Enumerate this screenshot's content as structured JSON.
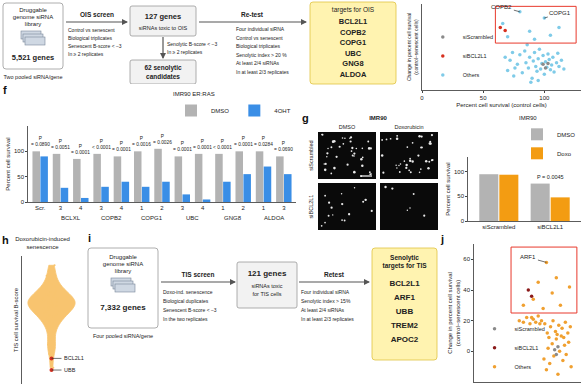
{
  "ois_workflow": {
    "library": {
      "title": "Druggable genome siRNA library",
      "genes": "5,521 genes",
      "note": "Two pooled siRNA/gene"
    },
    "screen": {
      "title": "OIS screen",
      "criteria": [
        "Control vs senescent",
        "Biological triplicates",
        "Senescent B-score < −3",
        "In ≥ 2 replicates"
      ]
    },
    "hits": {
      "genes": "127 genes",
      "note": "siRNAs toxic to OIS"
    },
    "filter": [
      "Senolytic B-score < −3",
      "In ≥ 2 replicates"
    ],
    "candidates": "62 senolytic candidates",
    "retest": {
      "title": "Re-test",
      "criteria": [
        "Four individual siRNA",
        "Control vs senescent",
        "Biological triplicates",
        "Senolytic index > 20 %",
        "At least 2/4 siRNAs",
        "In at least 2/3 replicates"
      ]
    },
    "targets": {
      "title": "targets for OIS",
      "genes": [
        "BCL2L1",
        "COPB2",
        "COPG1",
        "UBC",
        "GNG8",
        "ALDOA"
      ]
    }
  },
  "tis_workflow": {
    "panel": "i",
    "library": {
      "title": "Druggable genome siRNA library",
      "genes": "7,332 genes",
      "note": "Four pooled siRNA/gene"
    },
    "screen": {
      "title": "TIS screen",
      "criteria": [
        "Doxo-ind. senescence",
        "Biological duplicates",
        "Senescent B-score < −3",
        "In the two replicates"
      ]
    },
    "hits": {
      "genes": "121 genes",
      "note": "siRNAs toxic for TIS cells"
    },
    "retest": {
      "title": "Retest",
      "criteria": [
        "Four individual siRNA",
        "Senolytic index > 15%",
        "At least 2/4 siRNAs",
        "In at least 2/3 replicates"
      ]
    },
    "targets": {
      "title": "Senolytic targets for TIS",
      "genes": [
        "BCL2L1",
        "ARF1",
        "UBB",
        "TREM2",
        "APOC2"
      ]
    }
  },
  "micrographs": {
    "title": "IMR90",
    "columns": [
      "DMSO",
      "Doxorubicin"
    ],
    "rows": [
      "siScrambled",
      "siBCL2L1"
    ]
  },
  "chart_data": [
    {
      "type": "scatter",
      "x_label": "Percent cell survival (control cells)",
      "y_label": "Change in percent cell survival (control−senescent cells)",
      "xlim": [
        0,
        130
      ],
      "xticks": [
        0,
        50,
        100
      ],
      "ylim": [
        -30,
        80
      ],
      "tick_labels": "x",
      "grid": false,
      "legend": "lower left",
      "series": [
        {
          "name": "siScrambled",
          "color": "#8a8a8a",
          "x": [
            99,
            101,
            103
          ],
          "values": [
            3,
            -2,
            4
          ]
        },
        {
          "name": "siBCL2L1",
          "color": "#d7301f",
          "x": [
            64,
            68
          ],
          "values": [
            50,
            46
          ]
        },
        {
          "name": "Others",
          "color": "#7fcbe8",
          "x": [
            70,
            72,
            75,
            78,
            80,
            82,
            84,
            85,
            87,
            88,
            90,
            91,
            92,
            93,
            94,
            95,
            96,
            97,
            98,
            99,
            100,
            101,
            102,
            103,
            104,
            105,
            106,
            107,
            108,
            110,
            112,
            114,
            116,
            68,
            74,
            86,
            89,
            111,
            95,
            76,
            70,
            88,
            105,
            112,
            66,
            92,
            80,
            100
          ],
          "values": [
            -5,
            8,
            -12,
            3,
            15,
            -8,
            20,
            5,
            -2,
            12,
            -15,
            7,
            18,
            0,
            -6,
            10,
            22,
            -3,
            4,
            14,
            -10,
            6,
            -1,
            16,
            9,
            -4,
            2,
            12,
            -7,
            5,
            0,
            8,
            -3,
            12,
            18,
            28,
            -20,
            17,
            -18,
            -2,
            38,
            45,
            40,
            50,
            55,
            35,
            70,
            62
          ]
        }
      ],
      "highlight": {
        "x": [
          60,
          126
        ],
        "y": [
          30,
          77
        ],
        "color": "#e8392c"
      },
      "annotations": [
        {
          "text": "COPB2",
          "x": 80,
          "y": 70
        },
        {
          "text": "COPG1",
          "x": 100,
          "y": 62
        }
      ]
    },
    {
      "panel": "f",
      "type": "bar",
      "y_label": "Percent cell survival",
      "legend": "top right",
      "legend_title": "IMR90 ER:RAS",
      "grid": false,
      "groups": [
        {
          "name": null,
          "siRNAs": [
            "Scr."
          ]
        },
        {
          "name": "BCLXL",
          "siRNAs": [
            "3",
            "4"
          ]
        },
        {
          "name": "COPB2",
          "siRNAs": [
            "3",
            "4"
          ]
        },
        {
          "name": "COPG1",
          "siRNAs": [
            "1",
            "2"
          ]
        },
        {
          "name": "UBC",
          "siRNAs": [
            "3",
            "4"
          ]
        },
        {
          "name": "GNG8",
          "siRNAs": [
            "1",
            "2"
          ]
        },
        {
          "name": "ALDOA",
          "siRNAs": [
            "1",
            "3"
          ]
        }
      ],
      "ylim": [
        0,
        150
      ],
      "yticks": [
        0,
        50,
        100
      ],
      "series": [
        {
          "name": "DMSO",
          "color": "#b3b3b3",
          "values": [
            100,
            95,
            85,
            95,
            90,
            100,
            105,
            90,
            95,
            95,
            100,
            100,
            90
          ]
        },
        {
          "name": "4OHT",
          "color": "#3a8ee6",
          "values": [
            90,
            28,
            8,
            30,
            40,
            30,
            40,
            15,
            5,
            40,
            55,
            70,
            55
          ]
        }
      ],
      "p_labels": [
        "P = 0.0890",
        "P = 0.0051",
        "P = 0.0001",
        "P < 0.0001",
        "P = 0.0001",
        "P = 0.0016",
        "P = 0.0026",
        "P = 0.0001",
        "P = 0.0001",
        "P < 0.0001",
        "P = 0.0001",
        "P = 0.0284",
        "P = 0.0690"
      ]
    },
    {
      "panel": "g",
      "type": "bar",
      "categories": [
        "siScrambled",
        "siBCL2L1"
      ],
      "y_label": "Percent cell survival",
      "legend": "top right",
      "legend_title": "IMR90",
      "grid": false,
      "ylim": [
        0,
        130
      ],
      "yticks": [
        0,
        50,
        100
      ],
      "series": [
        {
          "name": "DMSO",
          "color": "#b3b3b3",
          "values": [
            95,
            76
          ]
        },
        {
          "name": "Doxo",
          "color": "#f39c12",
          "values": [
            94,
            48
          ]
        }
      ],
      "p_labels": [
        null,
        "P = 0.0045"
      ]
    },
    {
      "panel": "h",
      "type": "violin",
      "title": "Doxorubicin-induced senescence",
      "y_label": "TIS cell survival B-score",
      "ylim": [
        -7,
        4
      ],
      "tick_labels": false,
      "grid": false,
      "color": "#f5a623",
      "values": [
        -2.5,
        -2.1,
        -1.8,
        -1.6,
        -1.4,
        -1.2,
        -1.1,
        -1.0,
        -0.9,
        -0.8,
        -0.7,
        -0.6,
        -0.5,
        -0.4,
        -0.35,
        -0.3,
        -0.2,
        -0.15,
        -0.1,
        -0.05,
        0,
        0.05,
        0.1,
        0.15,
        0.2,
        0.3,
        0.35,
        0.4,
        0.5,
        0.6,
        0.7,
        0.8,
        0.9,
        1.0,
        1.2,
        1.4,
        1.6,
        1.9,
        2.3,
        2.8,
        3.2,
        -3.2,
        -3.6,
        -3.9,
        -4.4,
        -5.6
      ],
      "highlights": [
        {
          "text": "BCL2L1",
          "y": -4.8,
          "color": "#d7301f"
        },
        {
          "text": "UBB",
          "y": -5.8,
          "color": "#d7301f"
        }
      ]
    },
    {
      "panel": "j",
      "type": "scatter",
      "y_label": "Change in percent cell survival (control−senescent cells)",
      "xlim": [
        0,
        130
      ],
      "ylim": [
        -20,
        70
      ],
      "yticks": [
        0,
        20,
        40,
        60
      ],
      "tick_labels": "y",
      "grid": false,
      "legend": "lower left",
      "series": [
        {
          "name": "siScrambled",
          "color": "#8a8a8a",
          "x": [
            98,
            100,
            102
          ],
          "values": [
            1,
            -2,
            3
          ]
        },
        {
          "name": "siBCL2L1",
          "color": "#8b1a1a",
          "x": [
            66,
            70
          ],
          "values": [
            40,
            36
          ]
        },
        {
          "name": "Others",
          "color": "#f0a030",
          "x": [
            85,
            88,
            90,
            92,
            95,
            97,
            100,
            102,
            104,
            106,
            108,
            110,
            112,
            115,
            118,
            60,
            64,
            68,
            72,
            75,
            78,
            82,
            86,
            89,
            93,
            96,
            99,
            103,
            107,
            111,
            114,
            117,
            55,
            70,
            80,
            91,
            101,
            109,
            60,
            72,
            84,
            95,
            105,
            116,
            78,
            100,
            88
          ],
          "values": [
            -5,
            -12,
            2,
            -8,
            5,
            -3,
            8,
            -15,
            0,
            10,
            -6,
            4,
            -2,
            6,
            -10,
            19,
            22,
            18,
            21,
            19,
            23,
            20,
            18,
            12,
            16,
            20,
            13,
            17,
            15,
            19,
            12,
            16,
            20,
            22,
            18,
            9,
            11,
            9,
            30,
            34,
            28,
            38,
            30,
            42,
            45,
            48,
            58
          ]
        }
      ],
      "highlight": {
        "x": [
          45,
          125
        ],
        "y": [
          25,
          68
        ],
        "color": "#e8392c"
      },
      "annotations": [
        {
          "text": "ARF1",
          "x": 88,
          "y": 58
        }
      ]
    }
  ]
}
